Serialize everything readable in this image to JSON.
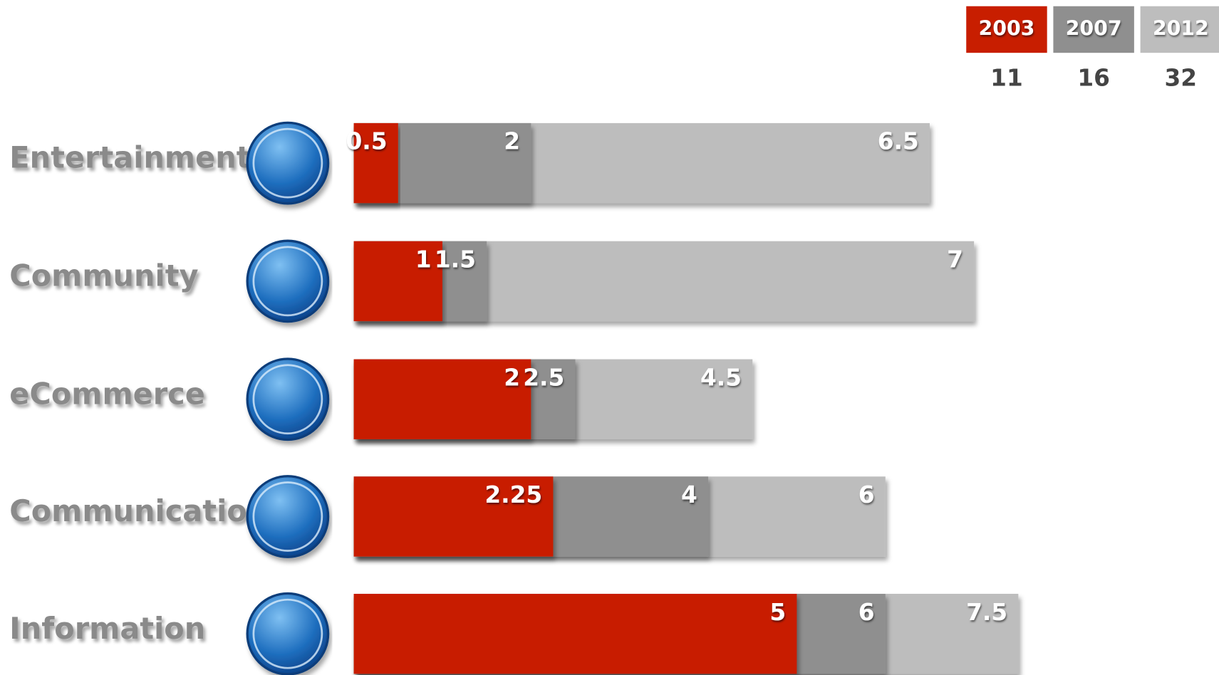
{
  "chart_data": {
    "type": "bar",
    "orientation": "horizontal",
    "overlap": true,
    "categories": [
      "Entertainment",
      "Community",
      "eCommerce",
      "Communication",
      "Information"
    ],
    "series": [
      {
        "name": "2003",
        "color": "#c81e00",
        "values": [
          0.5,
          1,
          2,
          2.25,
          5
        ],
        "total": "11"
      },
      {
        "name": "2007",
        "color": "#8f8f8f",
        "values": [
          2,
          1.5,
          2.5,
          4,
          6
        ],
        "total": "16"
      },
      {
        "name": "2012",
        "color": "#bdbdbd",
        "values": [
          6.5,
          7,
          4.5,
          6,
          7.5
        ],
        "total": "32"
      }
    ]
  }
}
